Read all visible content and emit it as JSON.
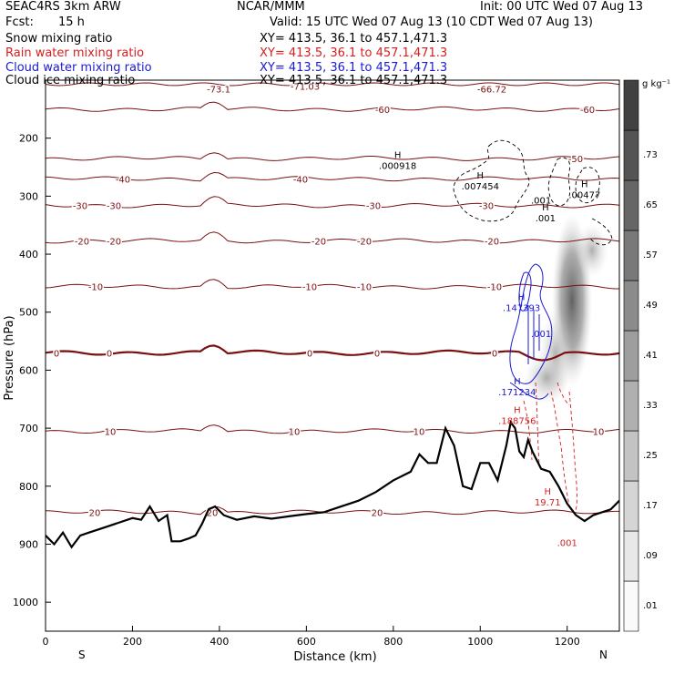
{
  "header": {
    "model": "SEAC4RS 3km ARW",
    "org": "NCAR/MMM",
    "init": "Init: 00 UTC Wed 07 Aug 13",
    "fcst_label": "Fcst:",
    "fcst_value": "15 h",
    "valid": "Valid: 15 UTC Wed 07 Aug 13 (10 CDT Wed 07 Aug 13)"
  },
  "fields": [
    {
      "name": "Snow mixing ratio",
      "color": "#000000",
      "xy": "XY= 413.5, 36.1 to 457.1,471.3"
    },
    {
      "name": "Rain water mixing ratio",
      "color": "#d42020",
      "xy": "XY= 413.5, 36.1 to 457.1,471.3"
    },
    {
      "name": "Cloud water mixing ratio",
      "color": "#1a1ad0",
      "xy": "XY= 413.5, 36.1 to 457.1,471.3"
    },
    {
      "name": "Cloud ice mixing ratio",
      "color": "#000000",
      "xy": "XY= 413.5, 36.1 to 457.1,471.3"
    }
  ],
  "chart_data": {
    "type": "contour cross-section",
    "xlabel": "Distance (km)",
    "ylabel": "Pressure (hPa)",
    "xlim": [
      0,
      1320
    ],
    "ylim": [
      1050,
      100
    ],
    "x_ticks": [
      "0",
      "200",
      "400",
      "600",
      "800",
      "1000",
      "1200"
    ],
    "y_ticks": [
      "200",
      "300",
      "400",
      "500",
      "600",
      "700",
      "800",
      "900",
      "1000"
    ],
    "end_labels": {
      "left": "S",
      "right": "N"
    },
    "colorbar": {
      "unit": "g kg⁻¹",
      "levels": [
        ".01",
        ".09",
        ".17",
        ".25",
        ".33",
        ".41",
        ".49",
        ".57",
        ".65",
        ".73"
      ]
    },
    "temperature_contours": [
      {
        "label": "-71.03",
        "p": 110
      },
      {
        "label": "-73.1",
        "p": 115
      },
      {
        "label": "-66.72",
        "p": 115
      },
      {
        "label": "-60",
        "p": 150
      },
      {
        "label": "-50",
        "p": 235
      },
      {
        "label": "-40",
        "p": 270
      },
      {
        "label": "-30",
        "p": 316
      },
      {
        "label": "-20",
        "p": 377
      },
      {
        "label": "-10",
        "p": 456
      },
      {
        "label": "0",
        "p": 570
      },
      {
        "label": "10",
        "p": 705
      },
      {
        "label": "20",
        "p": 845
      }
    ],
    "annotations": [
      {
        "mark": "H",
        "value": ".000918",
        "color": "#000000",
        "x": 810,
        "p": 250
      },
      {
        "mark": "H",
        "value": ".007454",
        "color": "#000000",
        "x": 1000,
        "p": 285
      },
      {
        "mark": "H",
        "value": ".00477",
        "color": "#000000",
        "x": 1240,
        "p": 300
      },
      {
        "mark": "",
        "value": ".001",
        "color": "#000000",
        "x": 1140,
        "p": 310
      },
      {
        "mark": "H",
        "value": ".001",
        "color": "#000000",
        "x": 1150,
        "p": 340
      },
      {
        "mark": "H",
        "value": ".147393",
        "color": "#1a1ad0",
        "x": 1095,
        "p": 495
      },
      {
        "mark": "",
        "value": ".001",
        "color": "#1a1ad0",
        "x": 1140,
        "p": 540
      },
      {
        "mark": "H",
        "value": ".171234",
        "color": "#1a1ad0",
        "x": 1085,
        "p": 640
      },
      {
        "mark": "H",
        "value": ".188756",
        "color": "#d42020",
        "x": 1085,
        "p": 690
      },
      {
        "mark": "H",
        "value": "19.71",
        "color": "#d42020",
        "x": 1155,
        "p": 830
      },
      {
        "mark": "",
        "value": ".001",
        "color": "#d42020",
        "x": 1200,
        "p": 900
      }
    ],
    "terrain_pressure": [
      [
        0,
        885
      ],
      [
        20,
        900
      ],
      [
        40,
        880
      ],
      [
        60,
        905
      ],
      [
        80,
        885
      ],
      [
        100,
        880
      ],
      [
        120,
        875
      ],
      [
        140,
        870
      ],
      [
        160,
        865
      ],
      [
        180,
        860
      ],
      [
        200,
        855
      ],
      [
        220,
        858
      ],
      [
        240,
        835
      ],
      [
        260,
        860
      ],
      [
        280,
        850
      ],
      [
        290,
        895
      ],
      [
        310,
        895
      ],
      [
        330,
        890
      ],
      [
        345,
        885
      ],
      [
        360,
        865
      ],
      [
        375,
        840
      ],
      [
        390,
        835
      ],
      [
        410,
        850
      ],
      [
        440,
        858
      ],
      [
        480,
        852
      ],
      [
        520,
        856
      ],
      [
        560,
        852
      ],
      [
        600,
        848
      ],
      [
        640,
        845
      ],
      [
        680,
        835
      ],
      [
        720,
        825
      ],
      [
        760,
        810
      ],
      [
        800,
        790
      ],
      [
        840,
        775
      ],
      [
        860,
        745
      ],
      [
        880,
        760
      ],
      [
        900,
        760
      ],
      [
        920,
        700
      ],
      [
        940,
        730
      ],
      [
        960,
        800
      ],
      [
        980,
        805
      ],
      [
        1000,
        760
      ],
      [
        1020,
        760
      ],
      [
        1040,
        790
      ],
      [
        1060,
        730
      ],
      [
        1070,
        690
      ],
      [
        1080,
        700
      ],
      [
        1090,
        740
      ],
      [
        1100,
        750
      ],
      [
        1110,
        720
      ],
      [
        1120,
        740
      ],
      [
        1140,
        770
      ],
      [
        1160,
        775
      ],
      [
        1180,
        800
      ],
      [
        1200,
        830
      ],
      [
        1220,
        850
      ],
      [
        1240,
        860
      ],
      [
        1260,
        850
      ],
      [
        1280,
        845
      ],
      [
        1300,
        840
      ],
      [
        1320,
        825
      ]
    ]
  }
}
